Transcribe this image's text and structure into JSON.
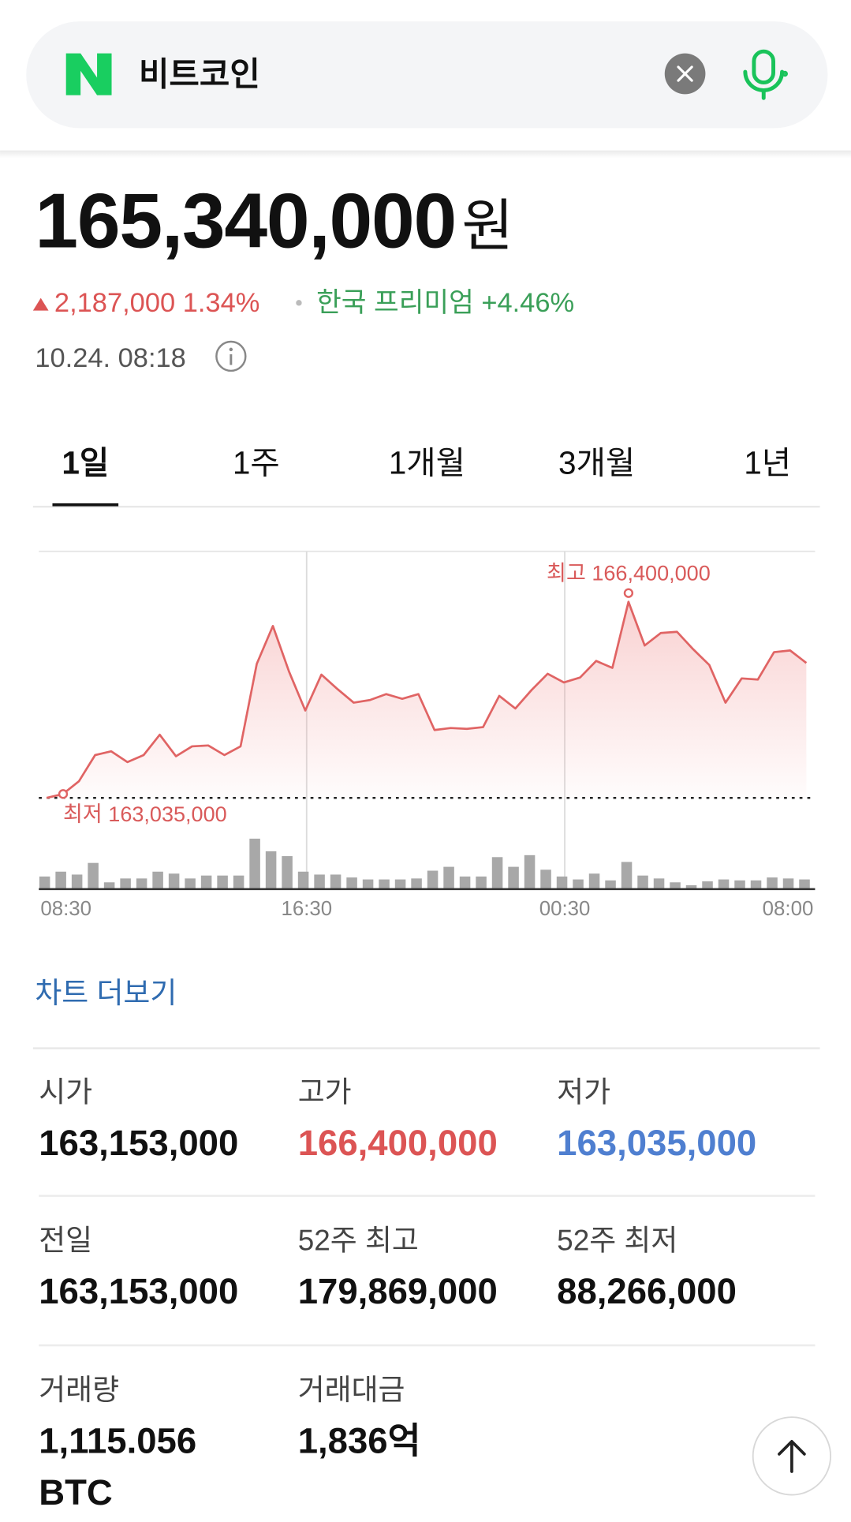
{
  "search": {
    "query": "비트코인"
  },
  "price": {
    "value": "165,340,000",
    "unit": "원",
    "change": "2,187,000 1.34%",
    "premium_label": "한국 프리미엄",
    "premium": "+4.46%",
    "time": "10.24. 08:18"
  },
  "tabs": [
    "1일",
    "1주",
    "1개월",
    "3개월",
    "1년"
  ],
  "chart": {
    "type": "line",
    "x_labels": [
      "08:30",
      "16:30",
      "00:30",
      "08:00"
    ],
    "values": [
      163035000,
      163100000,
      163320000,
      163770000,
      163835000,
      163650000,
      163770000,
      164120000,
      163750000,
      163920000,
      163935000,
      163770000,
      163920000,
      165335000,
      165985000,
      165200000,
      164535000,
      165150000,
      164900000,
      164670000,
      164715000,
      164815000,
      164735000,
      164815000,
      164200000,
      164235000,
      164220000,
      164250000,
      164785000,
      164570000,
      164885000,
      165165000,
      165015000,
      165100000,
      165385000,
      165265000,
      166400000,
      165650000,
      165865000,
      165885000,
      165585000,
      165315000,
      164670000,
      165085000,
      165065000,
      165535000,
      165565000,
      165350000
    ],
    "volumes": [
      13,
      18,
      15,
      27,
      7,
      11,
      11,
      18,
      16,
      11,
      14,
      14,
      14,
      52,
      39,
      34,
      18,
      15,
      15,
      12,
      10,
      10,
      10,
      11,
      19,
      23,
      13,
      13,
      33,
      23,
      35,
      20,
      13,
      10,
      16,
      9,
      28,
      14,
      11,
      7,
      4,
      8,
      10,
      9,
      9,
      12,
      11,
      10
    ],
    "high_label": "최고 166,400,000",
    "low_label": "최저 163,035,000"
  },
  "more_link": "차트 더보기",
  "stats": [
    {
      "label": "시가",
      "value": "163,153,000"
    },
    {
      "label": "고가",
      "value": "166,400,000",
      "color": "#dc5454"
    },
    {
      "label": "저가",
      "value": "163,035,000",
      "color": "#4f7fd0"
    },
    {
      "label": "전일",
      "value": "163,153,000"
    },
    {
      "label": "52주 최고",
      "value": "179,869,000"
    },
    {
      "label": "52주 최저",
      "value": "88,266,000"
    },
    {
      "label": "거래량",
      "value": "1,115.056",
      "unit": "BTC"
    },
    {
      "label": "거래대금",
      "value": "1,836억"
    }
  ]
}
